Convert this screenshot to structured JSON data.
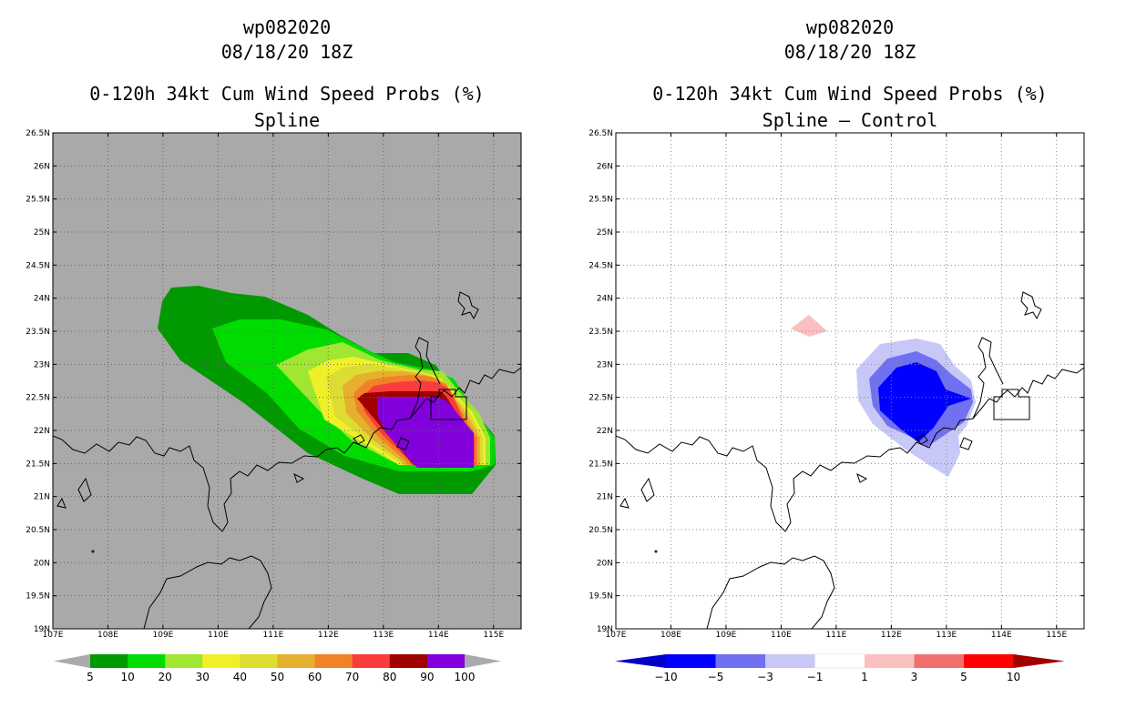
{
  "panels": [
    {
      "storm_id": "wp082020",
      "datetime": "08/18/20 18Z",
      "title": "0-120h 34kt Cum Wind Speed Probs (%)",
      "subtitle": "Spline"
    },
    {
      "storm_id": "wp082020",
      "datetime": "08/18/20 18Z",
      "title": "0-120h 34kt Cum Wind Speed Probs (%)",
      "subtitle": "Spline – Control"
    }
  ],
  "axes": {
    "lon_labels": [
      "107E",
      "108E",
      "109E",
      "110E",
      "111E",
      "112E",
      "113E",
      "114E",
      "115E"
    ],
    "lat_labels": [
      "19N",
      "19.5N",
      "20N",
      "20.5N",
      "21N",
      "21.5N",
      "22N",
      "22.5N",
      "23N",
      "23.5N",
      "24N",
      "24.5N",
      "25N",
      "25.5N",
      "26N",
      "26.5N"
    ],
    "lon_range": [
      107,
      115.5
    ],
    "lat_range": [
      19,
      26.5
    ]
  },
  "colorbars": {
    "left": {
      "labels": [
        "5",
        "10",
        "20",
        "30",
        "40",
        "50",
        "60",
        "70",
        "80",
        "90",
        "100"
      ],
      "colors": [
        "#009a00",
        "#00dc00",
        "#a0e632",
        "#f0f028",
        "#dcdc32",
        "#e6af2d",
        "#f08228",
        "#fa3c3c",
        "#a00000",
        "#8200dc"
      ],
      "end_color": "#aaaaaa"
    },
    "right": {
      "labels": [
        "−10",
        "−5",
        "−3",
        "−1",
        "1",
        "3",
        "5",
        "10"
      ],
      "colors": [
        "#0000c8",
        "#0000ff",
        "#7070f0",
        "#c8c8f8",
        "#ffffff",
        "#fac0c0",
        "#f07070",
        "#ff0000",
        "#a00000"
      ]
    }
  },
  "colors": {
    "background_left": "#a9a9a9",
    "background_right": "#ffffff",
    "coast": "#000000"
  }
}
